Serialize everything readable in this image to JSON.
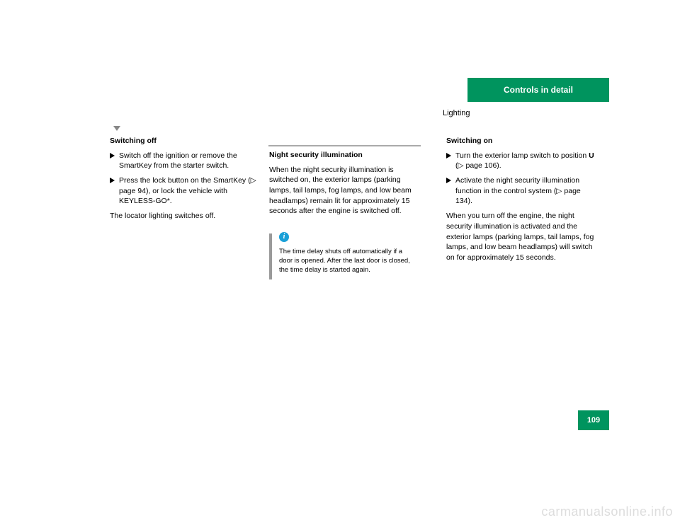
{
  "header": {
    "tab_label": "Controls in detail",
    "section_title": "Lighting"
  },
  "page": {
    "number": "109",
    "watermark": "carmanualsonline.info"
  },
  "col1": {
    "heading": "Switching off",
    "step1": "Switch off the ignition or remove the SmartKey from the starter switch.",
    "step2_a": "Press the lock button on the SmartKey (",
    "step2_b": " page 94), or lock the vehicle with KEYLESS-GO*.",
    "result": "The locator lighting switches off."
  },
  "col2": {
    "heading": "Night security illumination",
    "p1": "When the night security illumination is switched on, the exterior lamps (parking lamps, tail lamps, fog lamps, and low beam headlamps) remain lit for approximately 15 seconds after the engine is switched off.",
    "info": "The time delay shuts off automatically if a door is opened. After the last door is closed, the time delay is started again."
  },
  "col3": {
    "heading": "Switching on",
    "step1_a": "Turn the exterior lamp switch to position",
    "step1_b": " (",
    "step1_c": " page 106).",
    "step2": "Activate the night security illumination function in the control system (",
    "step2_b": " page 134).",
    "result": "When you turn off the engine, the night security illumination is activated and the exterior lamps (parking lamps, tail lamps, fog lamps, and low beam headlamps) will switch on for approximately 15 seconds."
  }
}
